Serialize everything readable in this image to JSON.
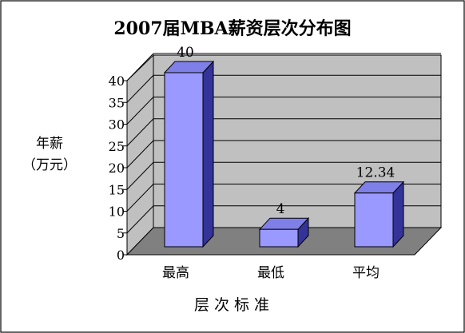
{
  "chart_data": {
    "type": "bar",
    "title": "2007届MBA薪资层次分布图",
    "ylabel_line1": "年薪",
    "ylabel_line2": "（万元）",
    "xlabel": "层 次 标 准",
    "categories": [
      "最高",
      "最低",
      "平均"
    ],
    "values": [
      40,
      4,
      12.34
    ],
    "value_labels": [
      "40",
      "4",
      "12.34"
    ],
    "ylim": [
      0,
      40
    ],
    "yticks": [
      "0",
      "5",
      "10",
      "15",
      "20",
      "25",
      "30",
      "35",
      "40"
    ],
    "grid": true,
    "legend": "none",
    "colors": {
      "bar_front": "#9999FF",
      "bar_top": "#7F7FE8",
      "bar_side": "#333399",
      "wall": "#C0C0C0",
      "floor": "#808080"
    }
  }
}
